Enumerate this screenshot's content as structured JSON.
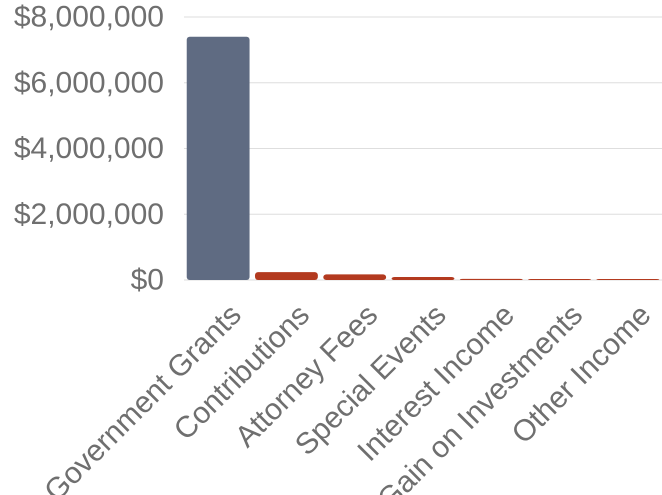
{
  "chart_data": {
    "type": "bar",
    "categories": [
      "Government Grants",
      "Contributions",
      "Attorney Fees",
      "Special Events",
      "Interest Income",
      "Gain on Investments",
      "Other Income"
    ],
    "values": [
      7400000,
      240000,
      170000,
      90000,
      35000,
      15000,
      10000
    ],
    "bar_colors": [
      "#5f6b82",
      "#b33a1f",
      "#b33a1f",
      "#b33a1f",
      "#b33a1f",
      "#b33a1f",
      "#b33a1f"
    ],
    "ylim": [
      0,
      8000000
    ],
    "yticks": [
      0,
      2000000,
      4000000,
      6000000,
      8000000
    ],
    "ytick_labels": [
      "$0",
      "$2,000,000",
      "$4,000,000",
      "$6,000,000",
      "$8,000,000"
    ],
    "title": "",
    "xlabel": "",
    "ylabel": "",
    "grid": true,
    "legend": "none"
  }
}
